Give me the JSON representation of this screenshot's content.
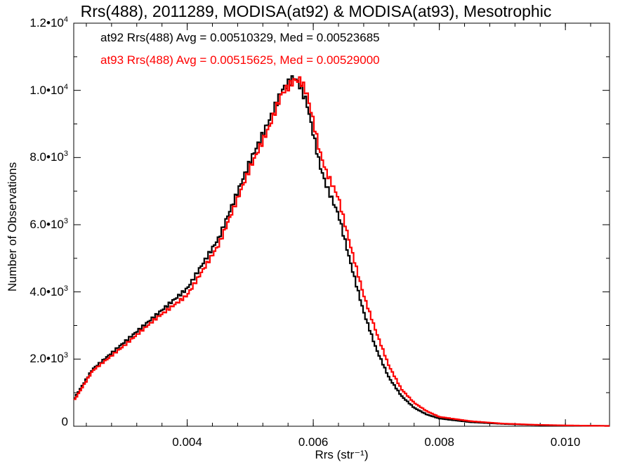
{
  "chart_data": {
    "type": "histogram",
    "title": "Rrs(488), 2011289, MODISA(at92) & MODISA(at93), Mesotrophic",
    "xlabel": "Rrs (str⁻¹)",
    "ylabel": "Number of Observations",
    "xlim": [
      0.0022,
      0.0107
    ],
    "ylim": [
      0,
      12000
    ],
    "xticks": [
      0.004,
      0.006,
      0.008,
      0.01
    ],
    "xtick_labels": [
      "0.004",
      "0.006",
      "0.008",
      "0.010"
    ],
    "yticks": [
      {
        "value": 0,
        "mantissa": "0",
        "exponent": ""
      },
      {
        "value": 2000,
        "mantissa": "2.0•10",
        "exponent": "3"
      },
      {
        "value": 4000,
        "mantissa": "4.0•10",
        "exponent": "3"
      },
      {
        "value": 6000,
        "mantissa": "6.0•10",
        "exponent": "3"
      },
      {
        "value": 8000,
        "mantissa": "8.0•10",
        "exponent": "3"
      },
      {
        "value": 10000,
        "mantissa": "1.0•10",
        "exponent": "4"
      },
      {
        "value": 12000,
        "mantissa": "1.2•10",
        "exponent": "4"
      }
    ],
    "grid": false,
    "legend_position": "top-left",
    "series": [
      {
        "name": "at92 Rrs(488) Avg = 0.00510329, Med = 0.00523685",
        "color": "#000000",
        "x": [
          0.0022,
          0.0025,
          0.003,
          0.0035,
          0.004,
          0.0045,
          0.005,
          0.0053,
          0.0055,
          0.0057,
          0.0058,
          0.0059,
          0.006,
          0.0061,
          0.0062,
          0.0064,
          0.0066,
          0.0068,
          0.007,
          0.0072,
          0.0074,
          0.0076,
          0.0078,
          0.008,
          0.0085,
          0.009,
          0.0095,
          0.01,
          0.0107
        ],
        "values": [
          800,
          1700,
          2500,
          3300,
          4100,
          5600,
          7900,
          9100,
          10000,
          10400,
          10100,
          9600,
          8700,
          7800,
          7200,
          6300,
          4800,
          3400,
          2300,
          1450,
          900,
          550,
          350,
          230,
          120,
          70,
          40,
          20,
          10
        ]
      },
      {
        "name": "at93 Rrs(488) Avg = 0.00515625, Med = 0.00529000",
        "color": "#ff0000",
        "x": [
          0.0022,
          0.0025,
          0.003,
          0.0035,
          0.004,
          0.0045,
          0.005,
          0.0053,
          0.0055,
          0.0057,
          0.0058,
          0.0059,
          0.006,
          0.0061,
          0.0062,
          0.0064,
          0.0066,
          0.0068,
          0.007,
          0.0072,
          0.0074,
          0.0076,
          0.0078,
          0.008,
          0.0085,
          0.009,
          0.0095,
          0.01,
          0.0107
        ],
        "values": [
          750,
          1650,
          2400,
          3200,
          3900,
          5400,
          7700,
          8900,
          9900,
          10300,
          10300,
          9900,
          9100,
          8200,
          7600,
          6800,
          5300,
          3900,
          2800,
          1800,
          1100,
          700,
          450,
          280,
          150,
          80,
          45,
          25,
          10
        ]
      }
    ]
  }
}
